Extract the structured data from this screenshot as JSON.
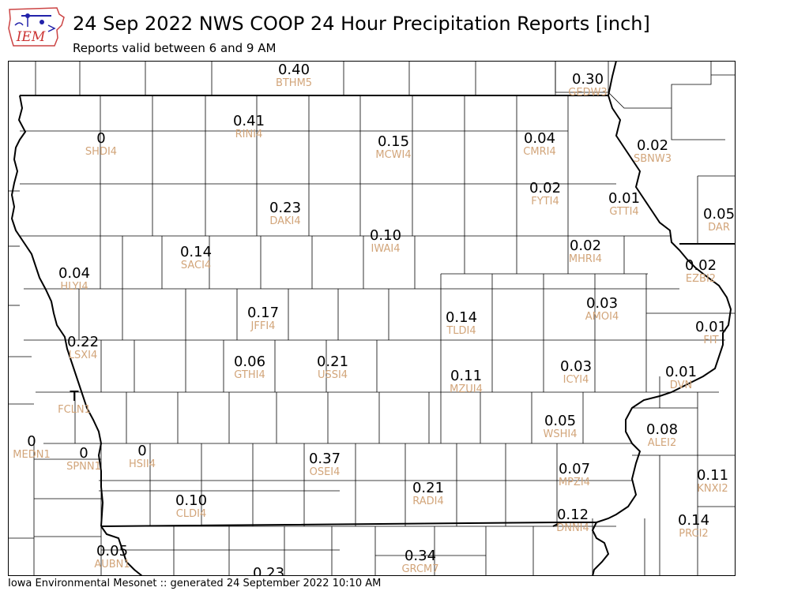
{
  "header": {
    "logo_text": "IEM",
    "title": "24 Sep 2022 NWS COOP 24 Hour Precipitation Reports [inch]",
    "subtitle": "Reports valid between 6 and 9 AM"
  },
  "footer": {
    "text": "Iowa Environmental Mesonet :: generated 24 September 2022 10:10 AM"
  },
  "map": {
    "label_colors": {
      "value": "#000000",
      "station": "#d2a57a"
    },
    "stations": [
      {
        "id": "BTHM5",
        "value": "0.40"
      },
      {
        "id": "GEDW3",
        "value": "0.30"
      },
      {
        "id": "RINI4",
        "value": "0.41"
      },
      {
        "id": "SHDI4",
        "value": "0"
      },
      {
        "id": "MCWI4",
        "value": "0.15"
      },
      {
        "id": "CMRI4",
        "value": "0.04"
      },
      {
        "id": "SBNW3",
        "value": "0.02"
      },
      {
        "id": "FYTI4",
        "value": "0.02"
      },
      {
        "id": "GTTI4",
        "value": "0.01"
      },
      {
        "id": "DAKI4",
        "value": "0.23"
      },
      {
        "id": "DAR",
        "value": "0.05"
      },
      {
        "id": "IWAI4",
        "value": "0.10"
      },
      {
        "id": "SACI4",
        "value": "0.14"
      },
      {
        "id": "MHRI4",
        "value": "0.02"
      },
      {
        "id": "EZBI2",
        "value": "0.02"
      },
      {
        "id": "HLYI4",
        "value": "0.04"
      },
      {
        "id": "AMOI4",
        "value": "0.03"
      },
      {
        "id": "JFFI4",
        "value": "0.17"
      },
      {
        "id": "TLDI4",
        "value": "0.14"
      },
      {
        "id": "FIT",
        "value": "0.01"
      },
      {
        "id": "LSXI4",
        "value": "0.22"
      },
      {
        "id": "GTHI4",
        "value": "0.06"
      },
      {
        "id": "USSI4",
        "value": "0.21"
      },
      {
        "id": "ICYI4",
        "value": "0.03"
      },
      {
        "id": "MZUI4",
        "value": "0.11"
      },
      {
        "id": "DVN",
        "value": "0.01"
      },
      {
        "id": "FCLN1",
        "value": "T"
      },
      {
        "id": "WSHI4",
        "value": "0.05"
      },
      {
        "id": "ALEI2",
        "value": "0.08"
      },
      {
        "id": "MEDN1",
        "value": "0"
      },
      {
        "id": "SPNN1",
        "value": "0"
      },
      {
        "id": "HSII4",
        "value": "0"
      },
      {
        "id": "OSEI4",
        "value": "0.37"
      },
      {
        "id": "MPZI4",
        "value": "0.07"
      },
      {
        "id": "KNXI2",
        "value": "0.11"
      },
      {
        "id": "CLDI4",
        "value": "0.10"
      },
      {
        "id": "RADI4",
        "value": "0.21"
      },
      {
        "id": "DNNI4",
        "value": "0.12"
      },
      {
        "id": "PRCI2",
        "value": "0.14"
      },
      {
        "id": "AUBN1",
        "value": "0.05"
      },
      {
        "id": "GRCM7",
        "value": "0.34"
      },
      {
        "id": "",
        "value": "0.23"
      }
    ]
  }
}
